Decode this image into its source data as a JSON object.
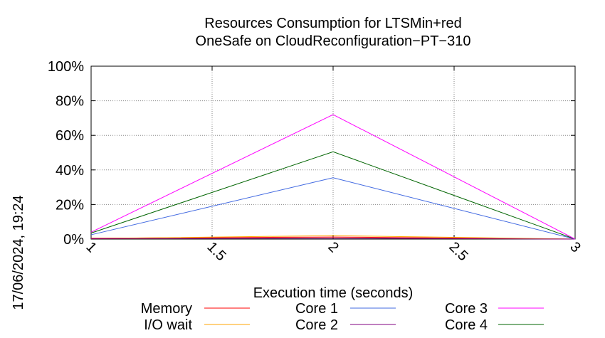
{
  "chart_data": {
    "type": "line",
    "title": "Resources Consumption for LTSMin+red",
    "subtitle": "OneSafe on CloudReconfiguration−PT−310",
    "xlabel": "Execution time (seconds)",
    "ylabel": "",
    "side_label": "17/06/2024, 19:24",
    "xlim": [
      1,
      3
    ],
    "ylim": [
      0,
      100
    ],
    "x_ticks": [
      1,
      1.5,
      2,
      2.5,
      3
    ],
    "x_tick_labels": [
      "1",
      "1.5",
      "2",
      "2.5",
      "3"
    ],
    "y_ticks": [
      0,
      20,
      40,
      60,
      80,
      100
    ],
    "y_tick_labels": [
      "0%",
      "20%",
      "40%",
      "60%",
      "80%",
      "100%"
    ],
    "grid": true,
    "legend_position": "bottom",
    "x": [
      1,
      2,
      3
    ],
    "series": [
      {
        "name": "Memory",
        "color": "#ff0000",
        "values": [
          0.5,
          1.2,
          0
        ]
      },
      {
        "name": "I/O wait",
        "color": "#ffa500",
        "values": [
          0.3,
          2.0,
          0
        ]
      },
      {
        "name": "Core 1",
        "color": "#4169e1",
        "values": [
          2.5,
          35.5,
          0
        ]
      },
      {
        "name": "Core 2",
        "color": "#800080",
        "values": [
          0.2,
          0.5,
          0
        ]
      },
      {
        "name": "Core 3",
        "color": "#ff00ff",
        "values": [
          4.0,
          72.0,
          0
        ]
      },
      {
        "name": "Core 4",
        "color": "#006400",
        "values": [
          3.5,
          50.5,
          0
        ]
      }
    ]
  }
}
